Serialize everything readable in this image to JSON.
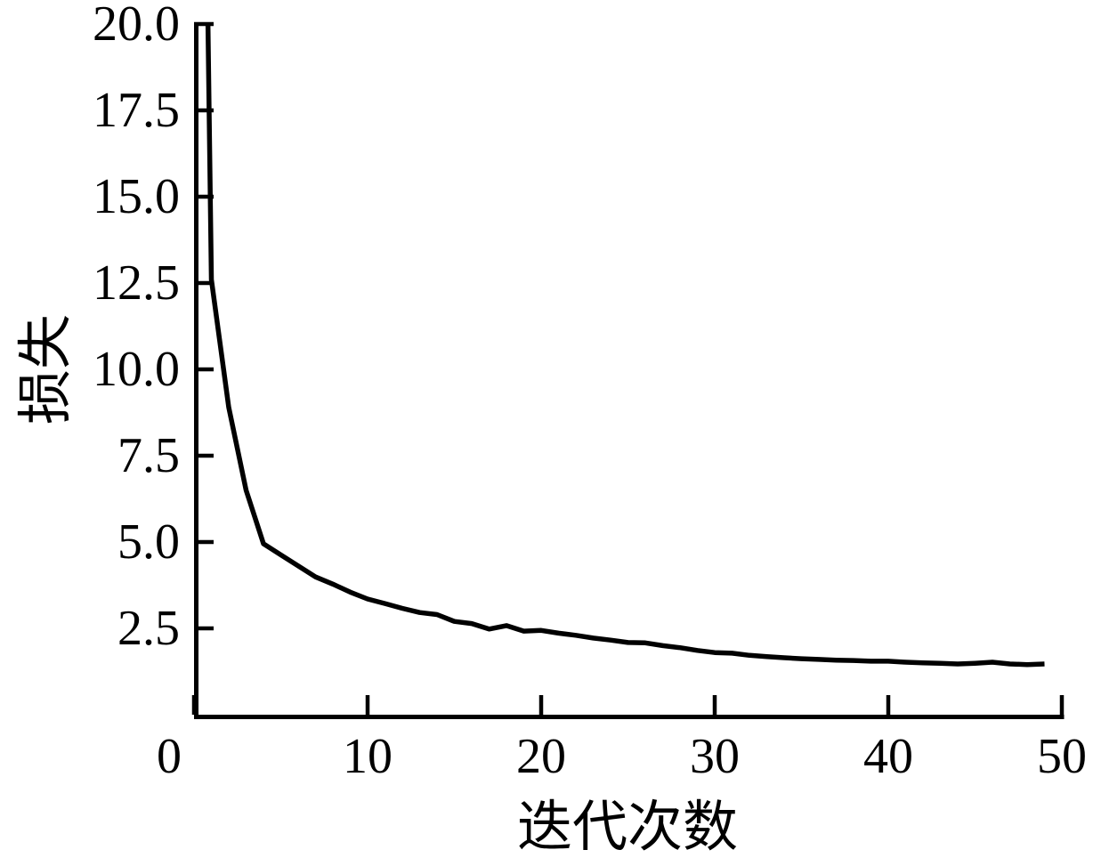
{
  "figure": {
    "background": "#ffffff",
    "line_color": "#000000",
    "axis_color": "#000000"
  },
  "chart_data": {
    "type": "line",
    "title": "",
    "xlabel": "迭代次数",
    "ylabel": "损失",
    "xlim": [
      0,
      50
    ],
    "ylim": [
      0,
      20
    ],
    "grid": false,
    "legend": "none",
    "x_ticks": [
      0,
      10,
      20,
      30,
      40,
      50
    ],
    "x_tick_labels": [
      "0",
      "10",
      "20",
      "30",
      "40",
      "50"
    ],
    "y_ticks": [
      2.5,
      5.0,
      7.5,
      10.0,
      12.5,
      15.0,
      17.5,
      20.0
    ],
    "y_tick_labels": [
      "2.5",
      "5.0",
      "7.5",
      "10.0",
      "12.5",
      "15.0",
      "17.5",
      "20.0"
    ],
    "series": [
      {
        "name": "loss",
        "x": [
          0,
          1,
          2,
          3,
          4,
          5,
          6,
          7,
          8,
          9,
          10,
          11,
          12,
          13,
          14,
          15,
          16,
          17,
          18,
          19,
          20,
          21,
          22,
          23,
          24,
          25,
          26,
          27,
          28,
          29,
          30,
          31,
          32,
          33,
          34,
          35,
          36,
          37,
          38,
          39,
          40,
          41,
          42,
          43,
          44,
          45,
          46,
          47,
          48,
          49
        ],
        "values": [
          50.0,
          12.6,
          8.9,
          6.5,
          4.95,
          4.63,
          4.31,
          3.99,
          3.78,
          3.55,
          3.35,
          3.22,
          3.08,
          2.96,
          2.9,
          2.7,
          2.64,
          2.48,
          2.58,
          2.42,
          2.44,
          2.36,
          2.3,
          2.22,
          2.16,
          2.09,
          2.08,
          2.0,
          1.94,
          1.86,
          1.8,
          1.78,
          1.72,
          1.68,
          1.65,
          1.62,
          1.6,
          1.58,
          1.57,
          1.55,
          1.55,
          1.52,
          1.5,
          1.49,
          1.47,
          1.49,
          1.52,
          1.47,
          1.45,
          1.47
        ]
      }
    ]
  }
}
